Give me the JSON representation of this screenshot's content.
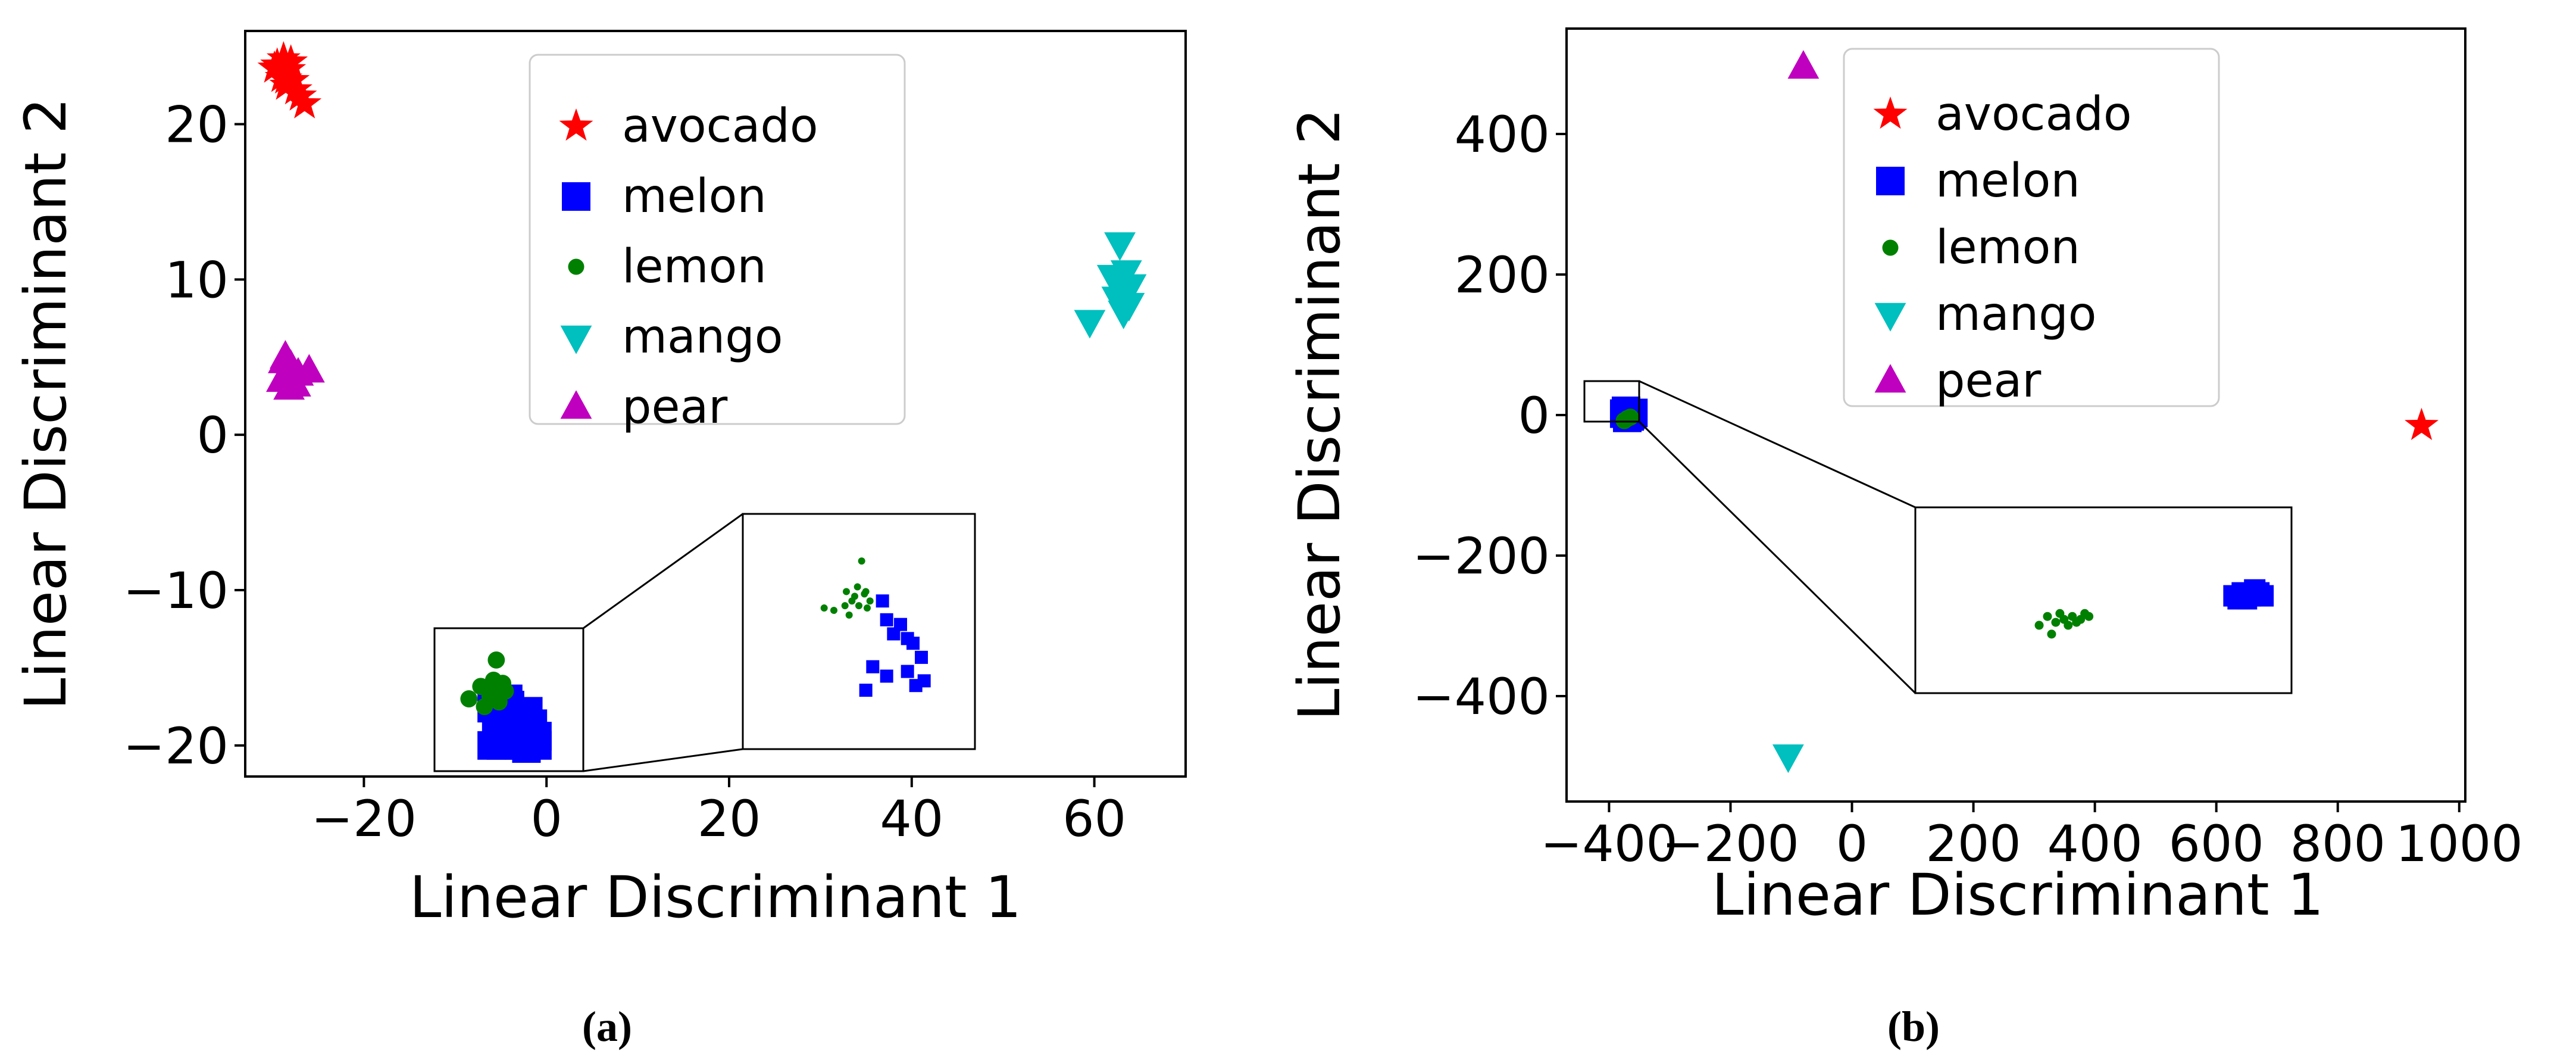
{
  "chart_data": [
    {
      "panel": "a",
      "type": "scatter",
      "caption": "(a)",
      "xlabel": "Linear Discriminant 1",
      "ylabel": "Linear Discriminant 2",
      "xlim": [
        -33,
        70
      ],
      "ylim": [
        -22,
        26
      ],
      "xticks": [
        -20,
        0,
        20,
        40,
        60
      ],
      "yticks": [
        -20,
        -10,
        0,
        10,
        20
      ],
      "xtick_labels": [
        "−20",
        "0",
        "20",
        "40",
        "60"
      ],
      "ytick_labels": [
        "−20",
        "−10",
        "0",
        "10",
        "20"
      ],
      "legend": {
        "placement": "top-center",
        "entries": [
          "avocado",
          "melon",
          "lemon",
          "mango",
          "pear"
        ]
      },
      "series": [
        {
          "name": "avocado",
          "marker": "star",
          "color": "#ff0000",
          "x": [
            -29.5,
            -28.8,
            -28.2,
            -29.0,
            -27.8,
            -28.5,
            -27.5,
            -27.0,
            -26.5,
            -29.8,
            -28.0,
            -28.6
          ],
          "y": [
            23.8,
            24.2,
            23.5,
            23.0,
            22.8,
            22.5,
            22.2,
            21.8,
            21.3,
            23.6,
            24.0,
            22.9
          ]
        },
        {
          "name": "melon",
          "marker": "square",
          "color": "#0000ff",
          "x": [
            -6,
            -5,
            -4,
            -3,
            -2,
            -1,
            -5.5,
            -4.5,
            -3.5,
            -2.5,
            -1.5,
            -6,
            -4,
            -2,
            -5,
            -3,
            -1,
            -4.2,
            -3.2,
            -2.2
          ],
          "y": [
            -20,
            -20,
            -19.8,
            -20,
            -19.6,
            -19.4,
            -18.5,
            -18.8,
            -18.3,
            -19.0,
            -18.6,
            -17.6,
            -17.4,
            -17.8,
            -19.2,
            -19.5,
            -20.0,
            -17.0,
            -18.0,
            -20.2
          ]
        },
        {
          "name": "lemon",
          "marker": "circle",
          "color": "#008000",
          "x": [
            -5.5,
            -7.2,
            -6.2,
            -4.8,
            -5.2,
            -6.8,
            -4.5,
            -5.8,
            -8.5,
            -6.0
          ],
          "y": [
            -14.5,
            -16.2,
            -16.8,
            -16.0,
            -17.2,
            -17.5,
            -16.5,
            -15.8,
            -17.0,
            -16.3
          ]
        },
        {
          "name": "mango",
          "marker": "triangle-down",
          "color": "#00bfbf",
          "x": [
            62.8,
            63.5,
            62.0,
            64.0,
            63.0,
            62.5,
            63.8,
            63.2,
            59.5,
            62.3
          ],
          "y": [
            12.3,
            10.5,
            10.2,
            9.6,
            9.2,
            8.8,
            8.4,
            7.9,
            7.3,
            9.9
          ]
        },
        {
          "name": "pear",
          "marker": "triangle-up",
          "color": "#bf00bf",
          "x": [
            -28.6,
            -28.0,
            -27.2,
            -29.0,
            -26.0,
            -28.2,
            -27.5,
            -28.8
          ],
          "y": [
            5.0,
            4.4,
            3.9,
            3.5,
            4.1,
            3.0,
            3.2,
            4.7
          ]
        }
      ],
      "zoom_region": {
        "x": [
          -13,
          2
        ],
        "y": [
          -22,
          -13
        ]
      },
      "zoom_inset": {
        "series": [
          {
            "name": "lemon",
            "x": [
              -5.3,
              -5.6,
              -6.4,
              -5.8,
              -5.0,
              -6.0,
              -4.9,
              -5.5,
              -6.5,
              -7.3,
              -6.2,
              -4.7,
              -5.1,
              -8.0
            ],
            "y": [
              -14.5,
              -15.6,
              -15.8,
              -16.0,
              -15.8,
              -16.2,
              -16.5,
              -16.4,
              -16.4,
              -16.6,
              -16.8,
              -16.2,
              -15.9,
              -16.5
            ]
          },
          {
            "name": "melon",
            "x": [
              -3.8,
              -3.5,
              -2.5,
              -3.0,
              -2.0,
              -1.6,
              -1.0,
              -4.5,
              -3.5,
              -2.0,
              -5.0,
              -1.4,
              -0.8
            ],
            "y": [
              -16.2,
              -17.0,
              -17.2,
              -17.6,
              -17.8,
              -18.0,
              -18.6,
              -19.0,
              -19.4,
              -19.2,
              -20.0,
              -19.8,
              -19.6
            ]
          }
        ]
      }
    },
    {
      "panel": "b",
      "type": "scatter",
      "caption": "(b)",
      "xlabel": "Linear Discriminant 1",
      "ylabel": "Linear Discriminant 2",
      "xlim": [
        -470,
        1010
      ],
      "ylim": [
        -550,
        550
      ],
      "xticks": [
        -400,
        -200,
        0,
        200,
        400,
        600,
        800,
        1000
      ],
      "yticks": [
        -400,
        -200,
        0,
        200,
        400
      ],
      "xtick_labels": [
        "−400",
        "−200",
        "0",
        "200",
        "400",
        "600",
        "800",
        "1000"
      ],
      "ytick_labels": [
        "−400",
        "−200",
        "0",
        "200",
        "400"
      ],
      "legend": {
        "placement": "top-center",
        "entries": [
          "avocado",
          "melon",
          "lemon",
          "mango",
          "pear"
        ]
      },
      "series": [
        {
          "name": "avocado",
          "marker": "star",
          "color": "#ff0000",
          "x": [
            938
          ],
          "y": [
            -15
          ]
        },
        {
          "name": "melon",
          "marker": "square",
          "color": "#0000ff",
          "x": [
            -375,
            -365,
            -370,
            -360,
            -372,
            -366
          ],
          "y": [
            2,
            0,
            -4,
            3,
            6,
            -2
          ]
        },
        {
          "name": "lemon",
          "marker": "circle",
          "color": "#008000",
          "x": [
            -370,
            -375,
            -365
          ],
          "y": [
            -5,
            -8,
            -3
          ]
        },
        {
          "name": "mango",
          "marker": "triangle-down",
          "color": "#00bfbf",
          "x": [
            -105
          ],
          "y": [
            -485
          ]
        },
        {
          "name": "pear",
          "marker": "triangle-up",
          "color": "#bf00bf",
          "x": [
            -80
          ],
          "y": [
            495
          ]
        }
      ],
      "zoom_region": {
        "x": [
          -415,
          -330
        ],
        "y": [
          -25,
          30
        ]
      },
      "zoom_inset": {
        "series": [
          {
            "name": "lemon",
            "x": [
              -388,
              -386,
              -384,
              -383,
              -382,
              -381,
              -380,
              -379,
              -378,
              -377,
              -376,
              -385
            ],
            "y": [
              -6,
              -3,
              -5,
              -2,
              -4,
              -6,
              -3,
              -5,
              -4,
              -2,
              -3,
              -9
            ]
          },
          {
            "name": "melon",
            "x": [
              -341,
              -340,
              -339,
              -338,
              -337,
              -336,
              -335,
              -334
            ],
            "y": [
              4,
              3,
              5,
              3,
              4,
              6,
              5,
              4
            ]
          }
        ]
      }
    }
  ]
}
